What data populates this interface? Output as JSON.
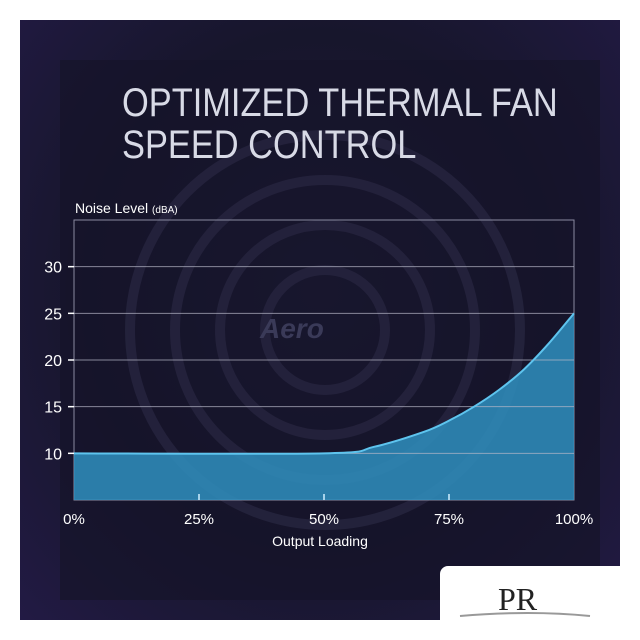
{
  "title_lines": [
    "OPTIMIZED THERMAL FAN",
    "SPEED CONTROL"
  ],
  "watermark_text": "Aero",
  "logo_text": "PR",
  "chart_data": {
    "type": "area",
    "title": "OPTIMIZED THERMAL FAN SPEED CONTROL",
    "ylabel": "Noise Level",
    "ylabel_unit": "(dBA)",
    "xlabel": "Output Loading",
    "x": [
      0,
      50,
      60,
      70,
      75,
      80,
      85,
      90,
      95,
      100
    ],
    "y": [
      10,
      10,
      10.7,
      12.3,
      13.5,
      15,
      16.8,
      19,
      21.8,
      25
    ],
    "xlim": [
      0,
      100
    ],
    "ylim": [
      5,
      35
    ],
    "xticks": [
      "0%",
      "25%",
      "50%",
      "75%",
      "100%"
    ],
    "xtick_values": [
      0,
      25,
      50,
      75,
      100
    ],
    "yticks": [
      "10",
      "15",
      "20",
      "25",
      "30"
    ],
    "ytick_values": [
      10,
      15,
      20,
      25,
      30
    ],
    "grid": true,
    "fill_color": "#2f8fc0",
    "line_color": "#5ec4ee"
  }
}
